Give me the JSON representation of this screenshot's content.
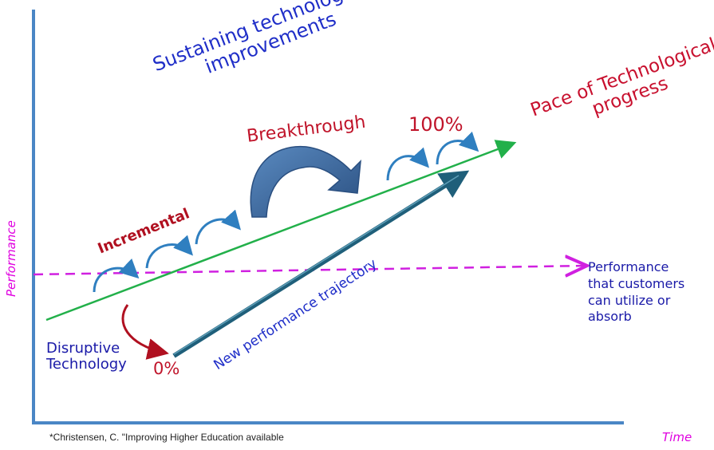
{
  "labels": {
    "sustaining_line1": "Sustaining technological",
    "sustaining_line2": "improvements",
    "pace_line1": "Pace of Technological",
    "pace_line2": "progress",
    "breakthrough": "Breakthrough",
    "hundred_pct": "100%",
    "incremental": "Incremental",
    "zero_pct": "0%",
    "disruptive_line1": "Disruptive",
    "disruptive_line2": "Technology",
    "new_trajectory": "New performance trajectory",
    "absorb_line1": "Performance",
    "absorb_line2": "that customers",
    "absorb_line3": "can utilize or",
    "absorb_line4": "absorb",
    "y_axis": "Performance",
    "x_axis": "Time",
    "citation": "*Christensen, C. \"Improving Higher Education available"
  },
  "colors": {
    "axis": "#4a86c5",
    "pace_line": "#22b04a",
    "customer_line": "#d020e0",
    "disruptive_arrow": "#1f5f7a",
    "incremental_arrows": "#2f7fc0",
    "breakthrough_arrow": "#3d70a8",
    "red_arrow": "#b01020"
  }
}
